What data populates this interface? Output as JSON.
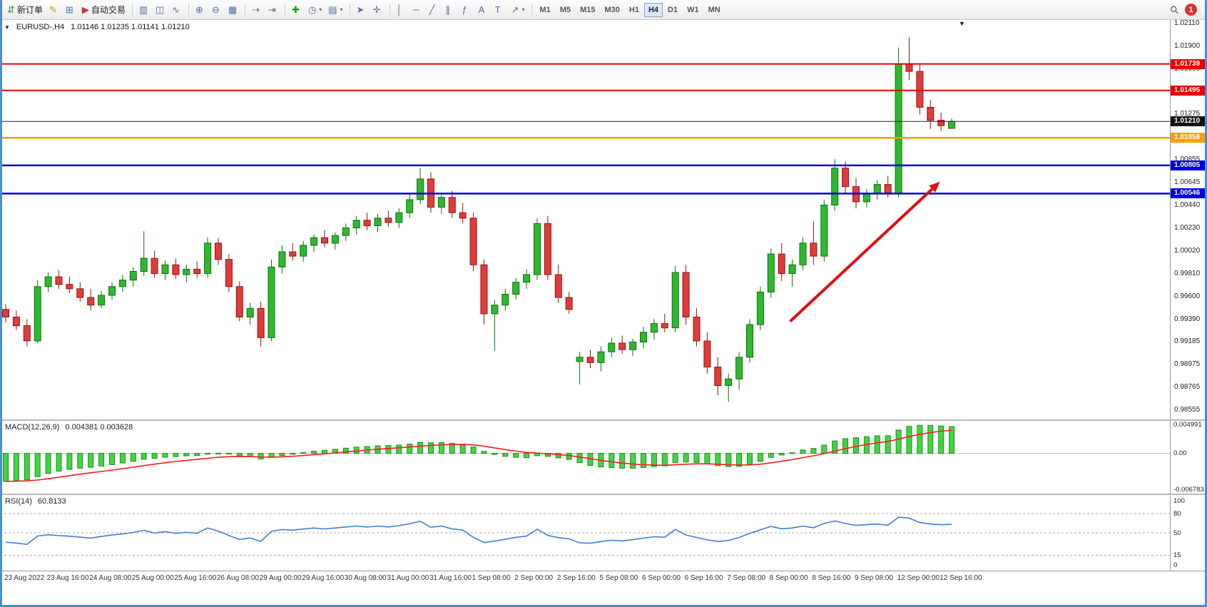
{
  "toolbar": {
    "search_glyph": "⚲",
    "badge": "1",
    "timeframes": {
      "items": [
        "M1",
        "M5",
        "M15",
        "M30",
        "H1",
        "H4",
        "D1",
        "W1",
        "MN"
      ],
      "active": "H4"
    },
    "items": [
      {
        "name": "new-order-button",
        "icon": "new-order-icon",
        "glyph": "⇵",
        "color": "#1a9b1a",
        "label": "新订单"
      },
      {
        "name": "metaeditor-button",
        "icon": "metaeditor-icon",
        "glyph": "✎",
        "color": "#c8a400"
      },
      {
        "name": "terminal-button",
        "icon": "terminal-icon",
        "glyph": "⊞",
        "color": "#3a6fd8"
      },
      {
        "name": "autotrading-button",
        "icon": "autotrading-icon",
        "glyph": "▶",
        "color": "#cc3333",
        "label": "自动交易"
      },
      {
        "sep": true
      },
      {
        "name": "bar-chart-button",
        "icon": "bar-chart-icon",
        "glyph": "▥"
      },
      {
        "name": "candlestick-chart-button",
        "icon": "candlestick-chart-icon",
        "glyph": "◫"
      },
      {
        "name": "line-chart-button",
        "icon": "line-chart-icon",
        "glyph": "∿"
      },
      {
        "sep": true
      },
      {
        "name": "zoom-in-button",
        "icon": "zoom-in-icon",
        "glyph": "⊕"
      },
      {
        "name": "zoom-out-button",
        "icon": "zoom-out-icon",
        "glyph": "⊖"
      },
      {
        "name": "tile-windows-button",
        "icon": "tile-windows-icon",
        "glyph": "▦"
      },
      {
        "sep": true
      },
      {
        "name": "auto-scroll-button",
        "icon": "auto-scroll-icon",
        "glyph": "⇢"
      },
      {
        "name": "chart-shift-button",
        "icon": "chart-shift-icon",
        "glyph": "⇥"
      },
      {
        "sep": true
      },
      {
        "name": "indicators-button",
        "icon": "indicators-icon",
        "glyph": "✚",
        "color": "#1a9b1a"
      },
      {
        "name": "periods-button",
        "icon": "periods-icon",
        "glyph": "◷",
        "caret": true
      },
      {
        "name": "templates-button",
        "icon": "templates-icon",
        "glyph": "▤",
        "caret": true
      },
      {
        "sep": true
      },
      {
        "name": "cursor-button",
        "icon": "cursor-icon",
        "glyph": "➤"
      },
      {
        "name": "crosshair-button",
        "icon": "crosshair-icon",
        "glyph": "✛"
      },
      {
        "sep": true
      },
      {
        "name": "vertical-line-button",
        "icon": "vertical-line-icon",
        "glyph": "│"
      },
      {
        "name": "horizontal-line-button",
        "icon": "horizontal-line-icon",
        "glyph": "─"
      },
      {
        "name": "trendline-button",
        "icon": "trendline-icon",
        "glyph": "╱"
      },
      {
        "name": "channel-button",
        "icon": "channel-icon",
        "glyph": "∥"
      },
      {
        "name": "fibonacci-button",
        "icon": "fibonacci-icon",
        "glyph": "ƒ"
      },
      {
        "name": "text-button",
        "icon": "text-icon",
        "glyph": "A"
      },
      {
        "name": "text-label-button",
        "icon": "text-label-icon",
        "glyph": "T"
      },
      {
        "name": "arrows-button",
        "icon": "arrows-icon",
        "glyph": "↗",
        "caret": true
      },
      {
        "sep": true
      }
    ]
  },
  "chart": {
    "title": "EURUSD-,H4",
    "ohlc": "1.01146 1.01235 1.01141 1.01210",
    "oclt_glyph": "▼",
    "shift_glyph": "▼"
  },
  "chart_data": {
    "type": "candlestick",
    "symbol": "EURUSD-",
    "timeframe": "H4",
    "current": {
      "open": "1.01146",
      "high": "1.01235",
      "low": "1.01141",
      "close": "1.01210"
    },
    "style": {
      "up_fill": "#2eb82e",
      "up_edge": "#0e6f0e",
      "down_fill": "#e13b3b",
      "down_edge": "#8f1616"
    },
    "price_axis": {
      "ticks": [
        "1.02110",
        "1.01900",
        "1.01690",
        "1.01480",
        "1.01275",
        "1.01065",
        "1.00855",
        "1.00645",
        "1.00440",
        "1.00230",
        "1.00020",
        "0.99810",
        "0.99600",
        "0.99390",
        "0.99185",
        "0.98975",
        "0.98765",
        "0.98555"
      ]
    },
    "levels": [
      {
        "name": "resistance-line-1",
        "price": 1.01739,
        "color": "#e80000",
        "width": 2,
        "box": "#e80000",
        "label": "1.01739"
      },
      {
        "name": "resistance-line-2",
        "price": 1.01495,
        "color": "#e80000",
        "width": 2,
        "box": "#e80000",
        "label": "1.01495"
      },
      {
        "name": "current-price-line",
        "price": 1.0121,
        "color": "#222222",
        "width": 1,
        "box": "#111111",
        "label": "1.01210"
      },
      {
        "name": "pivot-line",
        "price": 1.01058,
        "color": "#ff9d00",
        "width": 2.5,
        "box": "#ff9d00",
        "label": "1.01058"
      },
      {
        "name": "support-line-1",
        "price": 1.00805,
        "color": "#0000dd",
        "width": 2.5,
        "box": "#0000dd",
        "label": "1.00805"
      },
      {
        "name": "support-line-2",
        "price": 1.00546,
        "color": "#0000dd",
        "width": 2.5,
        "box": "#0000dd",
        "label": "1.00546"
      }
    ],
    "arrow": {
      "from_index": 73.8,
      "from_price": 0.9937,
      "to_index": 87.9,
      "to_price": 1.00655,
      "color": "#e01010",
      "width": 4
    },
    "time_labels": [
      "23 Aug 2022",
      "23 Aug 16:00",
      "24 Aug 08:00",
      "25 Aug 00:00",
      "25 Aug 16:00",
      "26 Aug 08:00",
      "29 Aug 00:00",
      "29 Aug 16:00",
      "30 Aug 08:00",
      "31 Aug 00:00",
      "31 Aug 16:00",
      "1 Sep 08:00",
      "2 Sep 00:00",
      "2 Sep 16:00",
      "5 Sep 08:00",
      "6 Sep 00:00",
      "6 Sep 16:00",
      "7 Sep 08:00",
      "8 Sep 00:00",
      "8 Sep 16:00",
      "9 Sep 08:00",
      "12 Sep 00:00",
      "12 Sep 16:00"
    ],
    "candles": [
      [
        0.9948,
        0.9953,
        0.9936,
        0.9941
      ],
      [
        0.9941,
        0.9947,
        0.9929,
        0.9933
      ],
      [
        0.9933,
        0.9939,
        0.9914,
        0.9919
      ],
      [
        0.9919,
        0.9975,
        0.9917,
        0.9969
      ],
      [
        0.9969,
        0.9982,
        0.9964,
        0.9978
      ],
      [
        0.9978,
        0.9984,
        0.9967,
        0.9971
      ],
      [
        0.9971,
        0.9978,
        0.9963,
        0.9967
      ],
      [
        0.9967,
        0.9973,
        0.9955,
        0.9959
      ],
      [
        0.9959,
        0.9967,
        0.9947,
        0.9952
      ],
      [
        0.9952,
        0.9965,
        0.9949,
        0.9961
      ],
      [
        0.9961,
        0.9973,
        0.9957,
        0.9969
      ],
      [
        0.9969,
        0.998,
        0.9964,
        0.9975
      ],
      [
        0.9975,
        0.9987,
        0.9969,
        0.9983
      ],
      [
        0.9983,
        1.002,
        0.9979,
        0.9995
      ],
      [
        0.9995,
        1.0002,
        0.9977,
        0.9981
      ],
      [
        0.9981,
        0.9993,
        0.9975,
        0.9989
      ],
      [
        0.9989,
        0.9995,
        0.9976,
        0.998
      ],
      [
        0.998,
        0.9989,
        0.9973,
        0.9985
      ],
      [
        0.9985,
        0.9992,
        0.9977,
        0.9981
      ],
      [
        0.9981,
        1.0014,
        0.9977,
        1.0009
      ],
      [
        1.0009,
        1.0014,
        0.9989,
        0.9994
      ],
      [
        0.9994,
        0.9999,
        0.9964,
        0.9969
      ],
      [
        0.9969,
        0.9974,
        0.9937,
        0.9941
      ],
      [
        0.9941,
        0.9954,
        0.9934,
        0.9949
      ],
      [
        0.9949,
        0.9955,
        0.9914,
        0.9922
      ],
      [
        0.9922,
        0.9994,
        0.9919,
        0.9987
      ],
      [
        0.9987,
        1.0007,
        0.9981,
        1.0001
      ],
      [
        1.0001,
        1.0009,
        0.9993,
        0.9997
      ],
      [
        0.9997,
        1.0011,
        0.9992,
        1.0007
      ],
      [
        1.0007,
        1.0017,
        1.0001,
        1.0014
      ],
      [
        1.0014,
        1.0021,
        1.0005,
        1.0009
      ],
      [
        1.0009,
        1.0019,
        1.0003,
        1.0016
      ],
      [
        1.0016,
        1.0027,
        1.0011,
        1.0023
      ],
      [
        1.0023,
        1.0034,
        1.0017,
        1.003
      ],
      [
        1.003,
        1.0037,
        1.0021,
        1.0025
      ],
      [
        1.0025,
        1.0036,
        1.0019,
        1.0032
      ],
      [
        1.0032,
        1.0039,
        1.0024,
        1.0028
      ],
      [
        1.0028,
        1.0041,
        1.0023,
        1.0037
      ],
      [
        1.0037,
        1.0054,
        1.0032,
        1.0049
      ],
      [
        1.0049,
        1.0078,
        1.0045,
        1.0068
      ],
      [
        1.0068,
        1.0074,
        1.0037,
        1.0042
      ],
      [
        1.0042,
        1.0055,
        1.0036,
        1.0051
      ],
      [
        1.0051,
        1.0057,
        1.0032,
        1.0037
      ],
      [
        1.0037,
        1.0046,
        1.0027,
        1.0032
      ],
      [
        1.0032,
        1.0037,
        0.9983,
        0.9989
      ],
      [
        0.9989,
        0.9994,
        0.9934,
        0.9944
      ],
      [
        0.9944,
        0.9957,
        0.991,
        0.9952
      ],
      [
        0.9952,
        0.9967,
        0.9947,
        0.9962
      ],
      [
        0.9962,
        0.9977,
        0.9957,
        0.9973
      ],
      [
        0.9973,
        0.9985,
        0.9967,
        0.998
      ],
      [
        0.998,
        1.0032,
        0.9975,
        1.0027
      ],
      [
        1.0027,
        1.0034,
        0.9975,
        0.998
      ],
      [
        0.998,
        0.9989,
        0.9954,
        0.9959
      ],
      [
        0.9959,
        0.9964,
        0.9944,
        0.9948
      ],
      [
        0.99,
        0.9909,
        0.9879,
        0.9904
      ],
      [
        0.9904,
        0.9911,
        0.9894,
        0.9899
      ],
      [
        0.9899,
        0.9914,
        0.9891,
        0.9909
      ],
      [
        0.9909,
        0.9922,
        0.9904,
        0.9917
      ],
      [
        0.9917,
        0.9924,
        0.9907,
        0.9911
      ],
      [
        0.9911,
        0.9921,
        0.9905,
        0.9918
      ],
      [
        0.9918,
        0.9932,
        0.9912,
        0.9927
      ],
      [
        0.9927,
        0.9939,
        0.992,
        0.9935
      ],
      [
        0.9935,
        0.9944,
        0.9927,
        0.9931
      ],
      [
        0.9931,
        0.9988,
        0.9927,
        0.9982
      ],
      [
        0.9982,
        0.9989,
        0.9934,
        0.9941
      ],
      [
        0.9941,
        0.9949,
        0.9914,
        0.9919
      ],
      [
        0.9919,
        0.9927,
        0.9889,
        0.9895
      ],
      [
        0.9895,
        0.9904,
        0.9869,
        0.9878
      ],
      [
        0.9878,
        0.9889,
        0.9863,
        0.9884
      ],
      [
        0.9884,
        0.9909,
        0.9874,
        0.9904
      ],
      [
        0.9904,
        0.9939,
        0.9899,
        0.9934
      ],
      [
        0.9934,
        0.9969,
        0.9929,
        0.9964
      ],
      [
        0.9964,
        1.0004,
        0.9959,
        0.9999
      ],
      [
        0.9999,
        1.0009,
        0.9974,
        0.9981
      ],
      [
        0.9981,
        0.9994,
        0.9969,
        0.9989
      ],
      [
        0.9989,
        1.0014,
        0.9984,
        1.0009
      ],
      [
        1.0009,
        1.0029,
        0.9989,
        0.9997
      ],
      [
        0.9997,
        1.0049,
        0.9992,
        1.0044
      ],
      [
        1.0044,
        1.0086,
        1.0039,
        1.0078
      ],
      [
        1.0078,
        1.0084,
        1.0054,
        1.0061
      ],
      [
        1.0061,
        1.0069,
        1.0041,
        1.0047
      ],
      [
        1.0047,
        1.0059,
        1.0042,
        1.0055
      ],
      [
        1.0055,
        1.0067,
        1.0049,
        1.0063
      ],
      [
        1.0063,
        1.0071,
        1.0051,
        1.0055
      ],
      [
        1.0055,
        1.0189,
        1.0051,
        1.0174
      ],
      [
        1.0174,
        1.0198,
        1.0159,
        1.0167
      ],
      [
        1.0167,
        1.0174,
        1.0127,
        1.0134
      ],
      [
        1.0134,
        1.0141,
        1.0114,
        1.0122
      ],
      [
        1.0122,
        1.0129,
        1.0112,
        1.0117
      ],
      [
        1.01146,
        1.01235,
        1.01141,
        1.0121
      ]
    ],
    "indicators": {
      "macd": {
        "label": "MACD(12,26,9)",
        "values": "0.004381 0.003628",
        "fast": 12,
        "slow": 26,
        "signal_period": 9,
        "seed_fast": 0.9955,
        "seed_slow": 1.0005,
        "scale_max": 0.0055,
        "scale_min": -0.0068,
        "axis_labels": [
          "0.004991",
          "0.00",
          "-0.006783"
        ],
        "histogram_fill": "#44d344",
        "histogram_edge": "#1d8f1d",
        "signal_color": "#ff1a1a"
      },
      "rsi": {
        "label": "RSI(14)",
        "value": "60.8133",
        "period": 14,
        "seed_gain": 0.0006,
        "seed_loss": 0.0011,
        "levels": [
          80,
          50,
          15
        ],
        "axis_labels": [
          "100",
          "80",
          "50",
          "15",
          "0"
        ],
        "line_color": "#3e7fd4"
      }
    }
  }
}
